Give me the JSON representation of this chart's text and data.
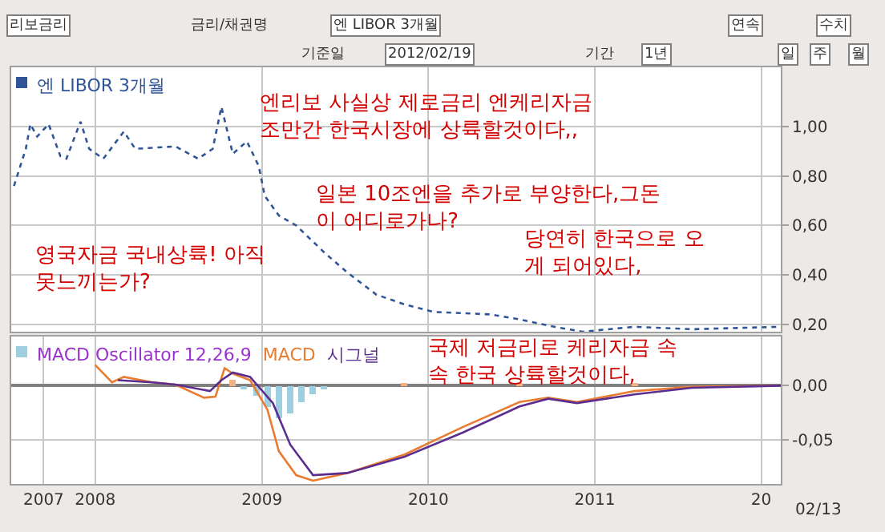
{
  "chart_data": [
    {
      "type": "other",
      "annotations": [
        "리보금리",
        "금리/채권명",
        "엔 LIBOR 3개월",
        "연속",
        "수치",
        "기준일",
        "2012/02/19",
        "기간",
        "1년",
        "일",
        "주",
        "월"
      ]
    },
    {
      "type": "line",
      "x": [
        "2007-07-07",
        "2007-08-02",
        "2007-08-12",
        "2007-08-27",
        "2007-09-21",
        "2007-10-17",
        "2007-10-30",
        "2007-11-30",
        "2007-12-19",
        "2008-01-19",
        "2008-03-04",
        "2008-03-29",
        "2008-06-25",
        "2008-08-14",
        "2008-09-15",
        "2008-10-04",
        "2008-10-29",
        "2008-11-29",
        "2008-12-25",
        "2009-01-07",
        "2009-02-07",
        "2009-03-17",
        "2009-05-18",
        "2009-07-07",
        "2009-09-09",
        "2009-11-10",
        "2010-01-13",
        "2010-05-18",
        "2010-07-20",
        "2010-10-04",
        "2010-12-06",
        "2011-03-29",
        "2011-08-02",
        "2012-02-13"
      ],
      "series": [
        {
          "name": "엔 LIBOR 3개월",
          "color": "#2f5597",
          "values": [
            0.76,
            0.91,
            1.01,
            0.96,
            1.01,
            0.88,
            0.87,
            1.02,
            0.91,
            0.87,
            0.98,
            0.91,
            0.92,
            0.87,
            0.91,
            1.08,
            0.89,
            0.94,
            0.84,
            0.72,
            0.64,
            0.6,
            0.49,
            0.41,
            0.32,
            0.28,
            0.25,
            0.24,
            0.22,
            0.19,
            0.17,
            0.19,
            0.18,
            0.19
          ]
        }
      ],
      "xlim": [
        "2007-07-01",
        "2012-02-13"
      ],
      "ylim": [
        0.17,
        1.24
      ],
      "yticks": [
        {
          "value": 1.0,
          "label": "1,00"
        },
        {
          "value": 0.8,
          "label": "0,80"
        },
        {
          "value": 0.6,
          "label": "0,60"
        },
        {
          "value": 0.4,
          "label": "0,40"
        },
        {
          "value": 0.2,
          "label": "0,20"
        }
      ],
      "xticks": [
        {
          "value": "2008-01-01",
          "label": null
        },
        {
          "value": "2009-01-01",
          "label": null
        },
        {
          "value": "2010-01-01",
          "label": null
        },
        {
          "value": "2011-01-01",
          "label": null
        },
        {
          "value": "2012-01-01",
          "label": null
        }
      ],
      "tick_labels": "y",
      "grid": true,
      "legend": "top left",
      "marker": "none",
      "line_style": "dotted",
      "annotations": [
        "엔리보 사실상 제로금리 엔케리자금\n조만간 한국시장에 상륙할것이다,,",
        "일본 10조엔을 추가로 부양한다,그돈\n이 어디로가나?",
        "당연히 한국으로 오\n게 되어있다,",
        "영국자금 국내상륙! 아직\n못느끼는가?"
      ]
    },
    {
      "type": "line",
      "series": [
        {
          "name": "MACD Oscillator 12,26,9",
          "type": "bar",
          "color": "#9ecfe0",
          "x": [
            "2008-10-29",
            "2008-11-23",
            "2008-12-19",
            "2009-01-13",
            "2009-02-07",
            "2009-03-04",
            "2009-03-29",
            "2009-04-23",
            "2009-05-18",
            "2009-11-10",
            "2010-07-20",
            "2011-03-29"
          ],
          "colors": [
            "#f4b183",
            "#9ecfe0",
            "#9ecfe0",
            "#9ecfe0",
            "#9ecfe0",
            "#9ecfe0",
            "#9ecfe0",
            "#9ecfe0",
            "#9ecfe0",
            "#f4b183",
            "#f4b183",
            "#f4b183"
          ],
          "values": [
            0.005,
            -0.003,
            -0.01,
            -0.02,
            -0.03,
            -0.025,
            -0.015,
            -0.008,
            -0.003,
            0.002,
            0.002,
            0.002
          ]
        },
        {
          "name": "MACD",
          "color": "#e97c30",
          "x": [
            "2008-01-01",
            "2008-02-07",
            "2008-03-04",
            "2008-05-06",
            "2008-06-25",
            "2008-08-27",
            "2008-09-21",
            "2008-10-11",
            "2008-10-29",
            "2008-12-06",
            "2009-01-13",
            "2009-02-07",
            "2009-03-17",
            "2009-04-23",
            "2009-07-07",
            "2009-11-10",
            "2010-03-17",
            "2010-07-20",
            "2010-09-21",
            "2010-11-23",
            "2011-03-29",
            "2011-08-02",
            "2012-02-13"
          ],
          "values": [
            0.019,
            0.003,
            0.008,
            0.003,
            0.001,
            -0.011,
            -0.01,
            0.016,
            0.011,
            0.005,
            -0.022,
            -0.06,
            -0.082,
            -0.087,
            -0.08,
            -0.063,
            -0.038,
            -0.015,
            -0.011,
            -0.015,
            -0.005,
            -0.001,
            0
          ]
        },
        {
          "name": "시그널",
          "color": "#5b2d8e",
          "x": [
            "2008-02-20",
            "2008-05-06",
            "2008-06-25",
            "2008-09-09",
            "2008-10-04",
            "2008-10-29",
            "2008-12-06",
            "2009-01-25",
            "2009-03-04",
            "2009-04-23",
            "2009-07-07",
            "2009-11-10",
            "2010-03-17",
            "2010-07-20",
            "2010-09-21",
            "2010-11-23",
            "2011-03-29",
            "2011-08-02",
            "2012-02-13"
          ],
          "values": [
            0.005,
            0.003,
            0.001,
            -0.005,
            0.005,
            0.012,
            0.008,
            -0.016,
            -0.054,
            -0.082,
            -0.08,
            -0.065,
            -0.043,
            -0.019,
            -0.012,
            -0.016,
            -0.008,
            -0.002,
            0
          ]
        }
      ],
      "xlim": [
        "2007-07-01",
        "2012-02-13"
      ],
      "ylim": [
        -0.09,
        0.045
      ],
      "yticks": [
        {
          "value": 0,
          "label": "0,00"
        },
        {
          "value": -0.05,
          "label": "-0,05"
        }
      ],
      "xticks": [
        {
          "value": "2007-09-10",
          "label": "2007"
        },
        {
          "value": "2008-01-01",
          "label": "2008"
        },
        {
          "value": "2009-01-01",
          "label": "2009"
        },
        {
          "value": "2010-01-01",
          "label": "2010"
        },
        {
          "value": "2011-01-01",
          "label": "2011"
        },
        {
          "value": "2012-01-01",
          "label": "20"
        }
      ],
      "grid": true,
      "legend": "top left",
      "marker": "none",
      "line_style": "solid",
      "annotations": [
        "국제 저금리로 케리자금 속\n속 한국 상륙할것이다,",
        "02/13"
      ]
    }
  ]
}
